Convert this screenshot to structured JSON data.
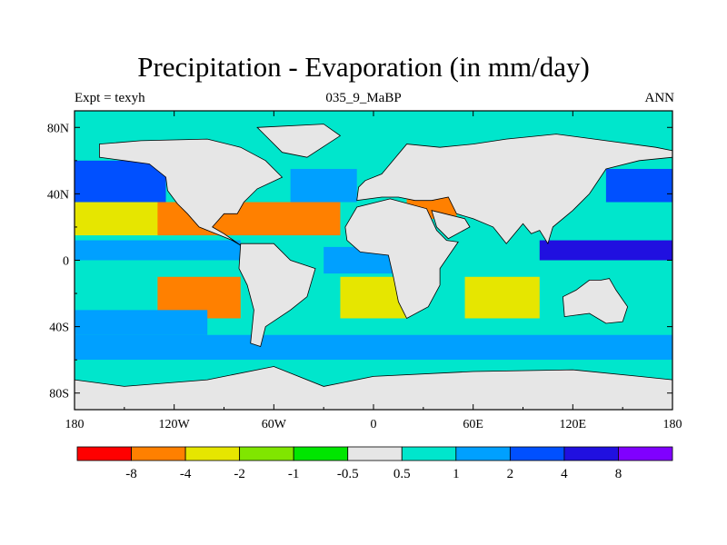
{
  "chart_data": {
    "type": "heatmap",
    "title": "Precipitation - Evaporation (in mm/day)",
    "subtitle_left": "Expt = texyh",
    "subtitle_center": "035_9_MaBP",
    "subtitle_right": "ANN",
    "x_ticks": [
      {
        "value": -180,
        "label": "180"
      },
      {
        "value": -120,
        "label": "120W"
      },
      {
        "value": -60,
        "label": "60W"
      },
      {
        "value": 0,
        "label": "0"
      },
      {
        "value": 60,
        "label": "60E"
      },
      {
        "value": 120,
        "label": "120E"
      },
      {
        "value": 180,
        "label": "180"
      }
    ],
    "y_ticks": [
      {
        "value": 80,
        "label": "80N"
      },
      {
        "value": 40,
        "label": "40N"
      },
      {
        "value": 0,
        "label": "0"
      },
      {
        "value": -40,
        "label": "40S"
      },
      {
        "value": -80,
        "label": "80S"
      }
    ],
    "xlim": [
      -180,
      180
    ],
    "ylim": [
      -90,
      90
    ],
    "colorbar": {
      "levels": [
        "-8",
        "-4",
        "-2",
        "-1",
        "-0.5",
        "0.5",
        "1",
        "2",
        "4",
        "8"
      ],
      "colors": [
        "#ff0000",
        "#ff8000",
        "#e6e600",
        "#80e600",
        "#00e600",
        "#e6e6e6",
        "#00e6cc",
        "#00a0ff",
        "#0050ff",
        "#2010e0",
        "#8000ff"
      ]
    },
    "bands": [
      {
        "lat": [
          60,
          90
        ],
        "lon": [
          -180,
          180
        ],
        "level": 6
      },
      {
        "lat": [
          35,
          60
        ],
        "lon": [
          -180,
          -125
        ],
        "level": 8
      },
      {
        "lat": [
          35,
          55
        ],
        "lon": [
          -50,
          -10
        ],
        "level": 7
      },
      {
        "lat": [
          35,
          55
        ],
        "lon": [
          140,
          180
        ],
        "level": 8
      },
      {
        "lat": [
          15,
          35
        ],
        "lon": [
          -180,
          -120
        ],
        "level": 2
      },
      {
        "lat": [
          15,
          35
        ],
        "lon": [
          -130,
          -20
        ],
        "level": 1
      },
      {
        "lat": [
          25,
          40
        ],
        "lon": [
          20,
          50
        ],
        "level": 1
      },
      {
        "lat": [
          0,
          12
        ],
        "lon": [
          -180,
          -80
        ],
        "level": 7
      },
      {
        "lat": [
          0,
          12
        ],
        "lon": [
          100,
          180
        ],
        "level": 9
      },
      {
        "lat": [
          -8,
          8
        ],
        "lon": [
          -30,
          20
        ],
        "level": 7
      },
      {
        "lat": [
          -35,
          -10
        ],
        "lon": [
          -130,
          -80
        ],
        "level": 1
      },
      {
        "lat": [
          -35,
          -10
        ],
        "lon": [
          -20,
          20
        ],
        "level": 2
      },
      {
        "lat": [
          -35,
          -10
        ],
        "lon": [
          55,
          100
        ],
        "level": 2
      },
      {
        "lat": [
          -45,
          -30
        ],
        "lon": [
          -180,
          -100
        ],
        "level": 7
      },
      {
        "lat": [
          -60,
          -45
        ],
        "lon": [
          -180,
          180
        ],
        "level": 7
      },
      {
        "lat": [
          -70,
          -60
        ],
        "lon": [
          -180,
          180
        ],
        "level": 6
      }
    ],
    "land": [
      {
        "name": "north-america",
        "pts": [
          [
            -165,
            70
          ],
          [
            -140,
            72
          ],
          [
            -100,
            73
          ],
          [
            -80,
            68
          ],
          [
            -65,
            60
          ],
          [
            -55,
            50
          ],
          [
            -70,
            43
          ],
          [
            -78,
            35
          ],
          [
            -82,
            28
          ],
          [
            -90,
            28
          ],
          [
            -97,
            20
          ],
          [
            -90,
            16
          ],
          [
            -80,
            9
          ],
          [
            -85,
            12
          ],
          [
            -105,
            20
          ],
          [
            -112,
            28
          ],
          [
            -118,
            34
          ],
          [
            -124,
            42
          ],
          [
            -125,
            50
          ],
          [
            -135,
            58
          ],
          [
            -150,
            60
          ],
          [
            -165,
            62
          ]
        ]
      },
      {
        "name": "greenland",
        "pts": [
          [
            -70,
            80
          ],
          [
            -30,
            82
          ],
          [
            -20,
            75
          ],
          [
            -40,
            62
          ],
          [
            -55,
            65
          ],
          [
            -65,
            75
          ]
        ]
      },
      {
        "name": "south-america",
        "pts": [
          [
            -80,
            10
          ],
          [
            -60,
            10
          ],
          [
            -50,
            0
          ],
          [
            -35,
            -5
          ],
          [
            -40,
            -22
          ],
          [
            -50,
            -30
          ],
          [
            -65,
            -40
          ],
          [
            -68,
            -52
          ],
          [
            -74,
            -50
          ],
          [
            -72,
            -30
          ],
          [
            -76,
            -15
          ],
          [
            -81,
            -5
          ]
        ]
      },
      {
        "name": "eurasia",
        "pts": [
          [
            -10,
            36
          ],
          [
            -9,
            44
          ],
          [
            -5,
            48
          ],
          [
            5,
            52
          ],
          [
            10,
            58
          ],
          [
            20,
            70
          ],
          [
            40,
            68
          ],
          [
            60,
            70
          ],
          [
            80,
            73
          ],
          [
            110,
            76
          ],
          [
            140,
            72
          ],
          [
            170,
            68
          ],
          [
            180,
            66
          ],
          [
            180,
            62
          ],
          [
            160,
            60
          ],
          [
            140,
            55
          ],
          [
            130,
            40
          ],
          [
            120,
            30
          ],
          [
            108,
            20
          ],
          [
            105,
            10
          ],
          [
            100,
            18
          ],
          [
            95,
            16
          ],
          [
            90,
            22
          ],
          [
            80,
            10
          ],
          [
            72,
            20
          ],
          [
            60,
            25
          ],
          [
            50,
            28
          ],
          [
            45,
            38
          ],
          [
            35,
            36
          ],
          [
            25,
            36
          ],
          [
            15,
            38
          ],
          [
            5,
            38
          ]
        ]
      },
      {
        "name": "africa",
        "pts": [
          [
            -17,
            20
          ],
          [
            -10,
            32
          ],
          [
            10,
            37
          ],
          [
            32,
            31
          ],
          [
            38,
            18
          ],
          [
            44,
            12
          ],
          [
            51,
            11
          ],
          [
            40,
            -5
          ],
          [
            40,
            -15
          ],
          [
            33,
            -28
          ],
          [
            20,
            -35
          ],
          [
            15,
            -25
          ],
          [
            12,
            -10
          ],
          [
            9,
            3
          ],
          [
            -8,
            5
          ],
          [
            -16,
            12
          ]
        ]
      },
      {
        "name": "arabia",
        "pts": [
          [
            35,
            30
          ],
          [
            55,
            25
          ],
          [
            58,
            20
          ],
          [
            45,
            13
          ],
          [
            38,
            20
          ]
        ]
      },
      {
        "name": "australia",
        "pts": [
          [
            114,
            -22
          ],
          [
            122,
            -18
          ],
          [
            130,
            -12
          ],
          [
            137,
            -12
          ],
          [
            142,
            -11
          ],
          [
            146,
            -18
          ],
          [
            153,
            -28
          ],
          [
            150,
            -37
          ],
          [
            140,
            -38
          ],
          [
            130,
            -32
          ],
          [
            115,
            -34
          ]
        ]
      },
      {
        "name": "antarctica",
        "pts": [
          [
            -180,
            -72
          ],
          [
            -150,
            -76
          ],
          [
            -100,
            -72
          ],
          [
            -60,
            -64
          ],
          [
            -30,
            -76
          ],
          [
            0,
            -70
          ],
          [
            60,
            -67
          ],
          [
            120,
            -66
          ],
          [
            160,
            -70
          ],
          [
            180,
            -72
          ],
          [
            180,
            -90
          ],
          [
            -180,
            -90
          ]
        ]
      }
    ]
  }
}
